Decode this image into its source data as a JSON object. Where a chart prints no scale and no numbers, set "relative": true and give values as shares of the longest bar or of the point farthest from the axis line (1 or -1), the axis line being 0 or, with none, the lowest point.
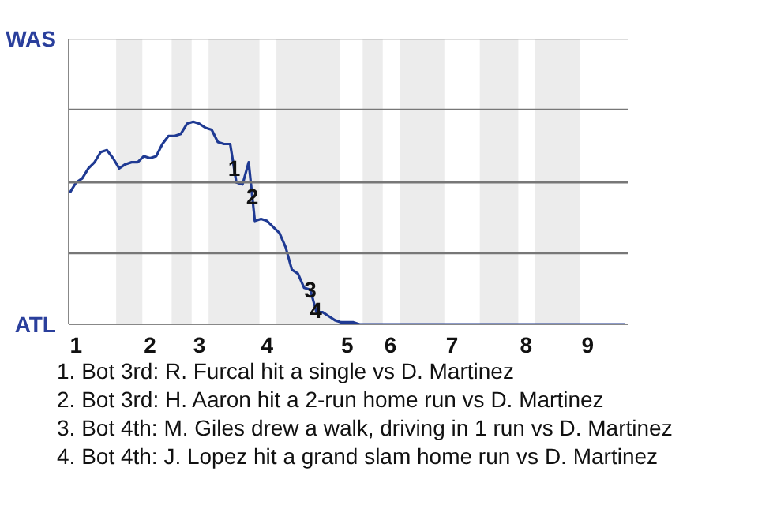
{
  "chart_data": {
    "type": "line",
    "relative": true,
    "categories": [
      null,
      "1",
      null,
      null,
      null,
      null,
      null,
      null,
      null,
      null,
      null,
      null,
      null,
      "2",
      null,
      null,
      null,
      null,
      null,
      null,
      null,
      "3",
      null,
      null,
      null,
      null,
      null,
      null,
      null,
      null,
      null,
      null,
      "4",
      null,
      null,
      null,
      null,
      null,
      null,
      null,
      null,
      null,
      null,
      null,
      null,
      "5",
      null,
      null,
      null,
      null,
      null,
      null,
      "6",
      null,
      null,
      null,
      null,
      null,
      null,
      null,
      null,
      null,
      "7",
      null,
      null,
      null,
      null,
      null,
      null,
      null,
      null,
      null,
      null,
      null,
      "8",
      null,
      null,
      null,
      null,
      null,
      null,
      null,
      null,
      null,
      "9",
      null,
      null,
      null,
      null,
      null,
      null
    ],
    "series": [
      {
        "color": "#1f3a93",
        "values": [
          0.65,
          0.7,
          0.72,
          0.77,
          0.8,
          0.85,
          0.86,
          0.82,
          0.77,
          0.79,
          0.8,
          0.8,
          0.83,
          0.82,
          0.83,
          0.89,
          0.93,
          0.93,
          0.94,
          0.99,
          1,
          0.99,
          0.97,
          0.96,
          0.9,
          0.89,
          0.89,
          0.7,
          0.69,
          0.8,
          0.51,
          0.52,
          0.51,
          0.48,
          0.45,
          0.38,
          0.27,
          0.25,
          0.18,
          0.17,
          0.06,
          0.06,
          0.04,
          0.02,
          0.01,
          0.01,
          0.01,
          0,
          0,
          0,
          0,
          0,
          0,
          0,
          0,
          0,
          0,
          0,
          0,
          0,
          0,
          0,
          0,
          0,
          0,
          0,
          0,
          0,
          0,
          0,
          0,
          0,
          0,
          0,
          0,
          0,
          0,
          0,
          0,
          0,
          0,
          0,
          0,
          0,
          0,
          0,
          0,
          0,
          0,
          0,
          0
        ]
      }
    ],
    "marker": "none",
    "line_style": "solid",
    "ref_lines": [
      {
        "axis": "y",
        "value": 0.35,
        "color": "#777777"
      },
      {
        "axis": "y",
        "value": 0.7,
        "color": "#777777"
      },
      {
        "axis": "y",
        "value": 1.06,
        "color": "#777777"
      },
      {
        "axis": "y",
        "value": 1.41,
        "color": "#777777"
      }
    ],
    "annotations": [
      "WAS",
      "ATL",
      {
        "text": "1",
        "y": 0.77
      },
      {
        "text": "2",
        "y": 0.63
      },
      {
        "text": "3",
        "y": 0.17
      },
      {
        "text": "4",
        "y": 0.07
      },
      "1. Bot 3rd: R. Furcal hit a single vs D. Martinez",
      "2. Bot 3rd: H. Aaron hit a 2-run home run vs D. Martinez",
      "3. Bot 4th: M. Giles drew a walk, driving in 1 run vs D. Martinez",
      "4. Bot 4th: J. Lopez hit a grand slam home run vs D. Martinez"
    ]
  }
}
